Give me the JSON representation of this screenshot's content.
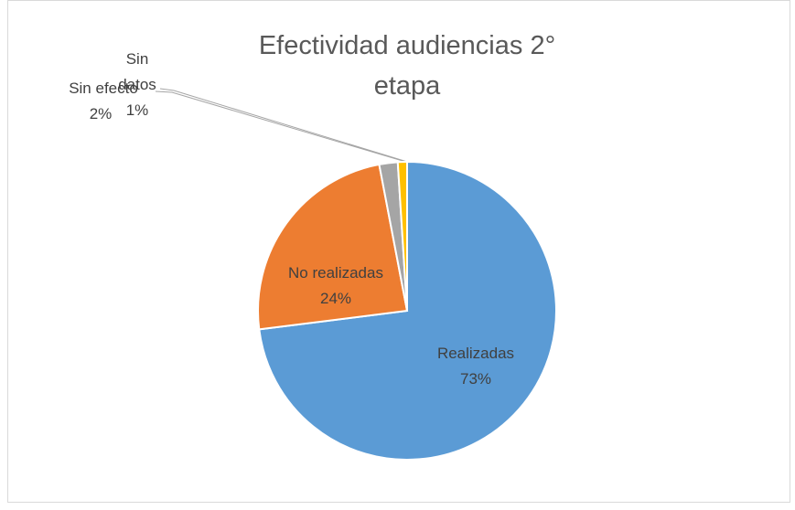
{
  "chart_data": {
    "type": "pie",
    "title": "Efectividad audiencias 2° etapa",
    "categories": [
      "Realizadas",
      "No realizadas",
      "Sin efecto",
      "Sin datos"
    ],
    "values": [
      73,
      24,
      2,
      1
    ],
    "value_labels": [
      "73%",
      "24%",
      "2%",
      "1%"
    ],
    "colors": [
      "#5b9bd5",
      "#ed7d31",
      "#a5a5a5",
      "#ffc000"
    ]
  }
}
